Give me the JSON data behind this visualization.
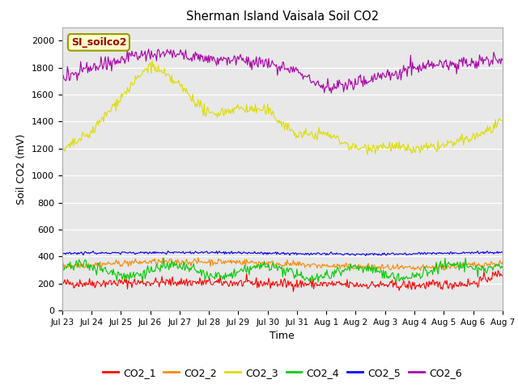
{
  "title": "Sherman Island Vaisala Soil CO2",
  "xlabel": "Time",
  "ylabel": "Soil CO2 (mV)",
  "ylim": [
    0,
    2100
  ],
  "yticks": [
    0,
    200,
    400,
    600,
    800,
    1000,
    1200,
    1400,
    1600,
    1800,
    2000
  ],
  "bg_color": "#e8e8e8",
  "annotation_text": "SI_soilco2",
  "annotation_bg": "#ffffcc",
  "annotation_border": "#999900",
  "annotation_text_color": "#990000",
  "legend_labels": [
    "CO2_1",
    "CO2_2",
    "CO2_3",
    "CO2_4",
    "CO2_5",
    "CO2_6"
  ],
  "colors": [
    "#ff0000",
    "#ff8800",
    "#dddd00",
    "#00cc00",
    "#0000ff",
    "#aa00aa"
  ],
  "line_width": 0.8,
  "n_points": 500,
  "x_start": 0,
  "x_end": 15,
  "xtick_labels": [
    "Jul 23",
    "Jul 24",
    "Jul 25",
    "Jul 26",
    "Jul 27",
    "Jul 28",
    "Jul 29",
    "Jul 30",
    "Jul 31",
    "Aug 1",
    "Aug 2",
    "Aug 3",
    "Aug 4",
    "Aug 5",
    "Aug 6",
    "Aug 7"
  ],
  "xtick_positions": [
    0,
    1,
    2,
    3,
    4,
    5,
    6,
    7,
    8,
    9,
    10,
    11,
    12,
    13,
    14,
    15
  ]
}
